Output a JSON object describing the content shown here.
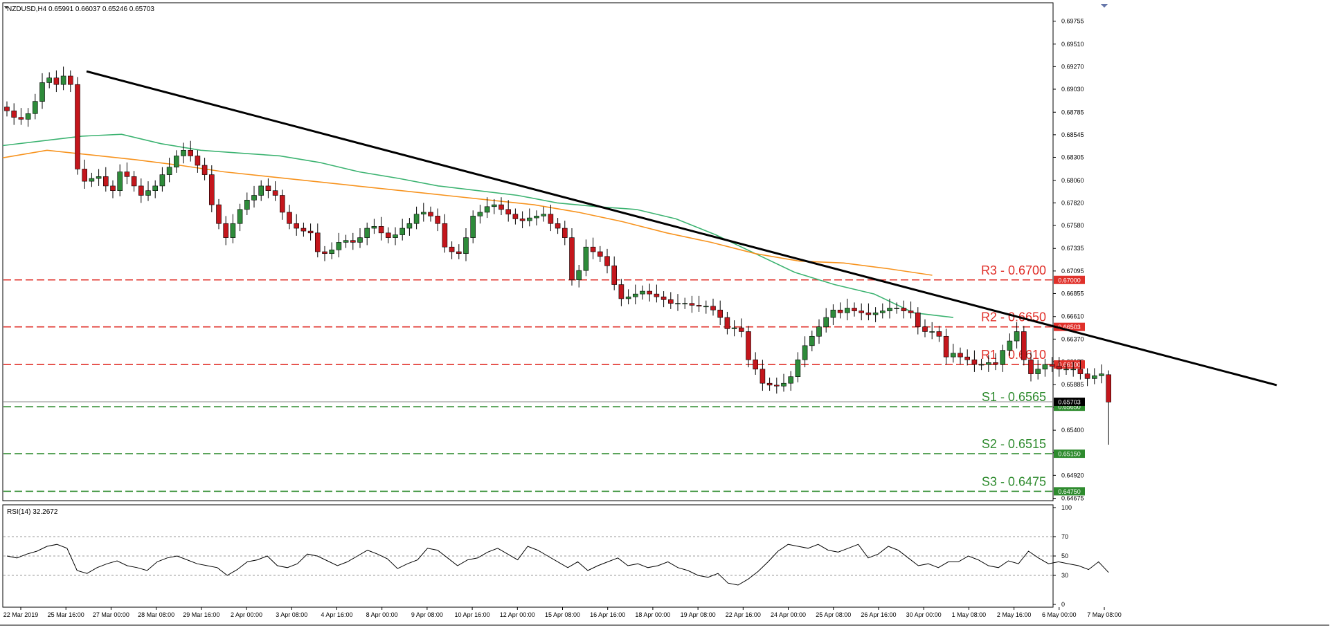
{
  "main_header": "NZDUSD,H4  0.65991 0.66037 0.65246 0.65703",
  "rsi_header": "RSI(14) 32.2672",
  "colors": {
    "bull": "#2e8b3a",
    "bear": "#c4161c",
    "ma_green": "#3cb371",
    "ma_orange": "#f7931e",
    "resistance": "#e0302a",
    "support": "#2e8b2e",
    "trendline": "#000000",
    "rsi_line": "#000000"
  },
  "chart_data": {
    "type": "candlestick",
    "symbol": "NZDUSD",
    "timeframe": "H4",
    "ohlc": {
      "open": 0.65991,
      "high": 0.66037,
      "low": 0.65246,
      "close": 0.65703
    },
    "ylim": [
      0.6465,
      0.6995
    ],
    "y_ticks": [
      "0.69755",
      "0.69510",
      "0.69270",
      "0.69030",
      "0.68785",
      "0.68545",
      "0.68305",
      "0.68060",
      "0.67820",
      "0.67580",
      "0.67335",
      "0.67095",
      "0.66855",
      "0.66610",
      "0.66370",
      "0.66130",
      "0.65885",
      "0.65645",
      "0.65400",
      "0.65160",
      "0.64920",
      "0.64675"
    ],
    "x_ticks": [
      "22 Mar 2019",
      "25 Mar 16:00",
      "27 Mar 00:00",
      "28 Mar 08:00",
      "29 Mar 16:00",
      "2 Apr 00:00",
      "3 Apr 08:00",
      "4 Apr 16:00",
      "8 Apr 00:00",
      "9 Apr 08:00",
      "10 Apr 16:00",
      "12 Apr 00:00",
      "15 Apr 08:00",
      "16 Apr 16:00",
      "18 Apr 00:00",
      "19 Apr 08:00",
      "22 Apr 16:00",
      "24 Apr 00:00",
      "25 Apr 08:00",
      "26 Apr 16:00",
      "30 Apr 00:00",
      "1 May 08:00",
      "2 May 16:00",
      "6 May 00:00",
      "7 May 08:00"
    ],
    "levels": [
      {
        "label": "R3 - 0.6700",
        "value": 0.67,
        "tag": "0.67000",
        "kind": "resistance"
      },
      {
        "label": "R2 - 0.6650",
        "value": 0.665,
        "tag": "0.66503",
        "kind": "resistance"
      },
      {
        "label": "R1 - 0.6610",
        "value": 0.661,
        "tag": "0.66100",
        "kind": "resistance"
      },
      {
        "label": "S1 - 0.6565",
        "value": 0.6565,
        "tag": "0.65650",
        "kind": "support"
      },
      {
        "label": "S2 - 0.6515",
        "value": 0.6515,
        "tag": "0.65150",
        "kind": "support"
      },
      {
        "label": "S3 - 0.6475",
        "value": 0.6475,
        "tag": "0.64750",
        "kind": "support"
      }
    ],
    "current_price_tag": "0.65703",
    "current_price": 0.65703,
    "trendline": {
      "start": {
        "index": 4,
        "value": 0.6922
      },
      "end": {
        "index": 97,
        "value": 0.6588
      }
    },
    "closes": [
      0.688,
      0.6873,
      0.6871,
      0.6877,
      0.689,
      0.691,
      0.6915,
      0.6908,
      0.6917,
      0.6908,
      0.6818,
      0.6805,
      0.6808,
      0.681,
      0.68,
      0.6795,
      0.6815,
      0.681,
      0.68,
      0.679,
      0.6795,
      0.68,
      0.6812,
      0.682,
      0.6832,
      0.6838,
      0.6832,
      0.6822,
      0.6812,
      0.678,
      0.676,
      0.6745,
      0.676,
      0.6775,
      0.6785,
      0.679,
      0.68,
      0.6795,
      0.679,
      0.6772,
      0.676,
      0.6755,
      0.6752,
      0.675,
      0.673,
      0.6728,
      0.6732,
      0.674,
      0.6742,
      0.674,
      0.6745,
      0.6755,
      0.6757,
      0.675,
      0.6745,
      0.6748,
      0.6755,
      0.676,
      0.677,
      0.6772,
      0.6768,
      0.676,
      0.6735,
      0.673,
      0.6728,
      0.6745,
      0.6768,
      0.6772,
      0.6778,
      0.678,
      0.6775,
      0.677,
      0.6765,
      0.6763,
      0.6766,
      0.6768,
      0.677,
      0.676,
      0.6755,
      0.6745,
      0.67,
      0.671,
      0.6735,
      0.673,
      0.6725,
      0.6715,
      0.6695,
      0.668,
      0.6682,
      0.6685,
      0.6688,
      0.6685,
      0.6682,
      0.6679,
      0.6675,
      0.6675,
      0.6675,
      0.6673,
      0.6672,
      0.6672,
      0.6668,
      0.666,
      0.6648,
      0.6649,
      0.6645,
      0.6615,
      0.6605,
      0.659,
      0.6588,
      0.6587,
      0.659,
      0.6597,
      0.6615,
      0.663,
      0.664,
      0.665,
      0.666,
      0.6668,
      0.6665,
      0.667,
      0.6667,
      0.6665,
      0.6663,
      0.6665,
      0.6667,
      0.667,
      0.667,
      0.6667,
      0.6665,
      0.665,
      0.6645,
      0.6645,
      0.664,
      0.6618,
      0.6622,
      0.6618,
      0.6615,
      0.661,
      0.661,
      0.6612,
      0.661,
      0.6625,
      0.6635,
      0.6645,
      0.6615,
      0.66,
      0.6605,
      0.661,
      0.6608,
      0.6605,
      0.6605,
      0.6605,
      0.66,
      0.6595,
      0.6598,
      0.66,
      0.657
    ],
    "ma_green": [
      0.6843,
      0.6848,
      0.6853,
      0.6855,
      0.6845,
      0.6838,
      0.6835,
      0.6832,
      0.6825,
      0.6815,
      0.6808,
      0.68,
      0.6795,
      0.679,
      0.6782,
      0.6778,
      0.6775,
      0.6765,
      0.6748,
      0.6728,
      0.6708,
      0.6695,
      0.6685,
      0.6665,
      0.666
    ],
    "ma_orange": [
      0.683,
      0.6838,
      0.6833,
      0.6828,
      0.6822,
      0.6815,
      0.681,
      0.6805,
      0.68,
      0.6795,
      0.679,
      0.6785,
      0.678,
      0.6772,
      0.6762,
      0.675,
      0.674,
      0.6728,
      0.672,
      0.6718,
      0.6712,
      0.6705
    ],
    "rsi": {
      "ylim": [
        0,
        100
      ],
      "y_ticks": [
        "100",
        "70",
        "50",
        "30",
        "0"
      ],
      "values": [
        50,
        48,
        52,
        55,
        60,
        62,
        58,
        35,
        32,
        38,
        42,
        45,
        40,
        38,
        35,
        44,
        48,
        50,
        46,
        42,
        40,
        38,
        30,
        36,
        44,
        46,
        50,
        40,
        38,
        42,
        52,
        50,
        45,
        40,
        44,
        50,
        56,
        52,
        47,
        37,
        42,
        46,
        58,
        56,
        48,
        40,
        46,
        48,
        54,
        58,
        52,
        46,
        60,
        56,
        50,
        44,
        38,
        44,
        35,
        40,
        44,
        48,
        40,
        42,
        38,
        40,
        44,
        38,
        35,
        30,
        28,
        32,
        22,
        20,
        26,
        34,
        44,
        55,
        62,
        60,
        58,
        62,
        56,
        54,
        58,
        62,
        48,
        52,
        60,
        56,
        48,
        40,
        42,
        38,
        44,
        44,
        50,
        46,
        40,
        38,
        45,
        42,
        55,
        48,
        42,
        44,
        42,
        40,
        36,
        44,
        33
      ],
      "last": 32.2672
    }
  }
}
